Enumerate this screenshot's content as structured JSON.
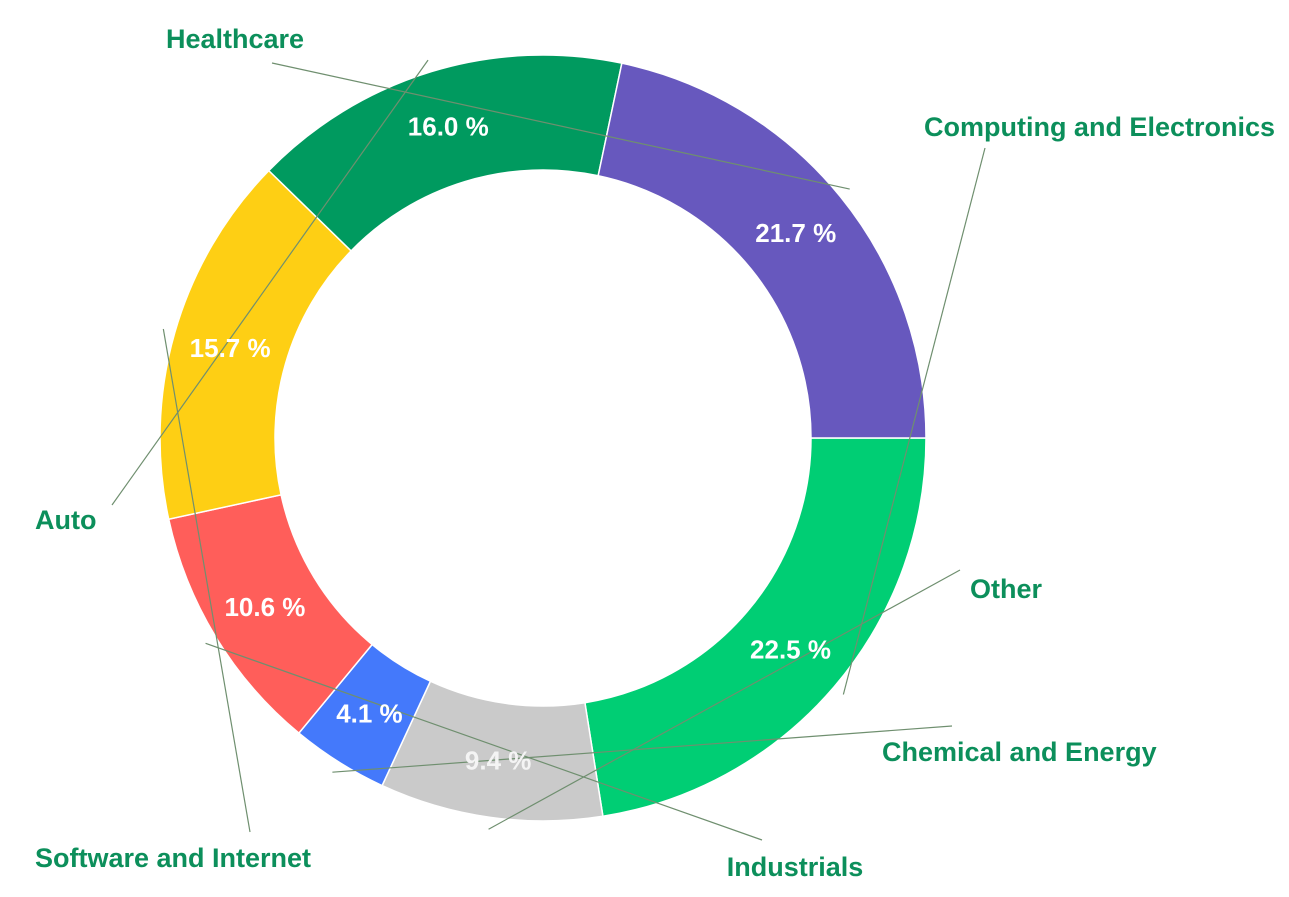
{
  "chart_data": {
    "type": "pie",
    "title": "",
    "categories": [
      "Computing and Electronics",
      "Other",
      "Chemical and Energy",
      "Industrials",
      "Software and Internet",
      "Auto",
      "Healthcare"
    ],
    "values": [
      22.5,
      9.4,
      4.1,
      10.6,
      15.7,
      16.0,
      21.7
    ],
    "value_labels": [
      "22.5 %",
      "9.4 %",
      "4.1 %",
      "10.6 %",
      "15.7 %",
      "16.0 %",
      "21.7 %"
    ],
    "colors": [
      "#00ce74",
      "#cacaca",
      "#4479fb",
      "#ff5e5a",
      "#fecf14",
      "#009a5f",
      "#6758be"
    ],
    "value_label_colors": [
      "#ffffff",
      "#f4f4f4",
      "#ffffff",
      "#ffffff",
      "#ffffff",
      "#ffffff",
      "#ffffff"
    ],
    "donut": true,
    "start_angle": "3 o'clock, clockwise",
    "legend": "none (labels around chart with leader lines)",
    "label_color": "#0c8f5b"
  }
}
